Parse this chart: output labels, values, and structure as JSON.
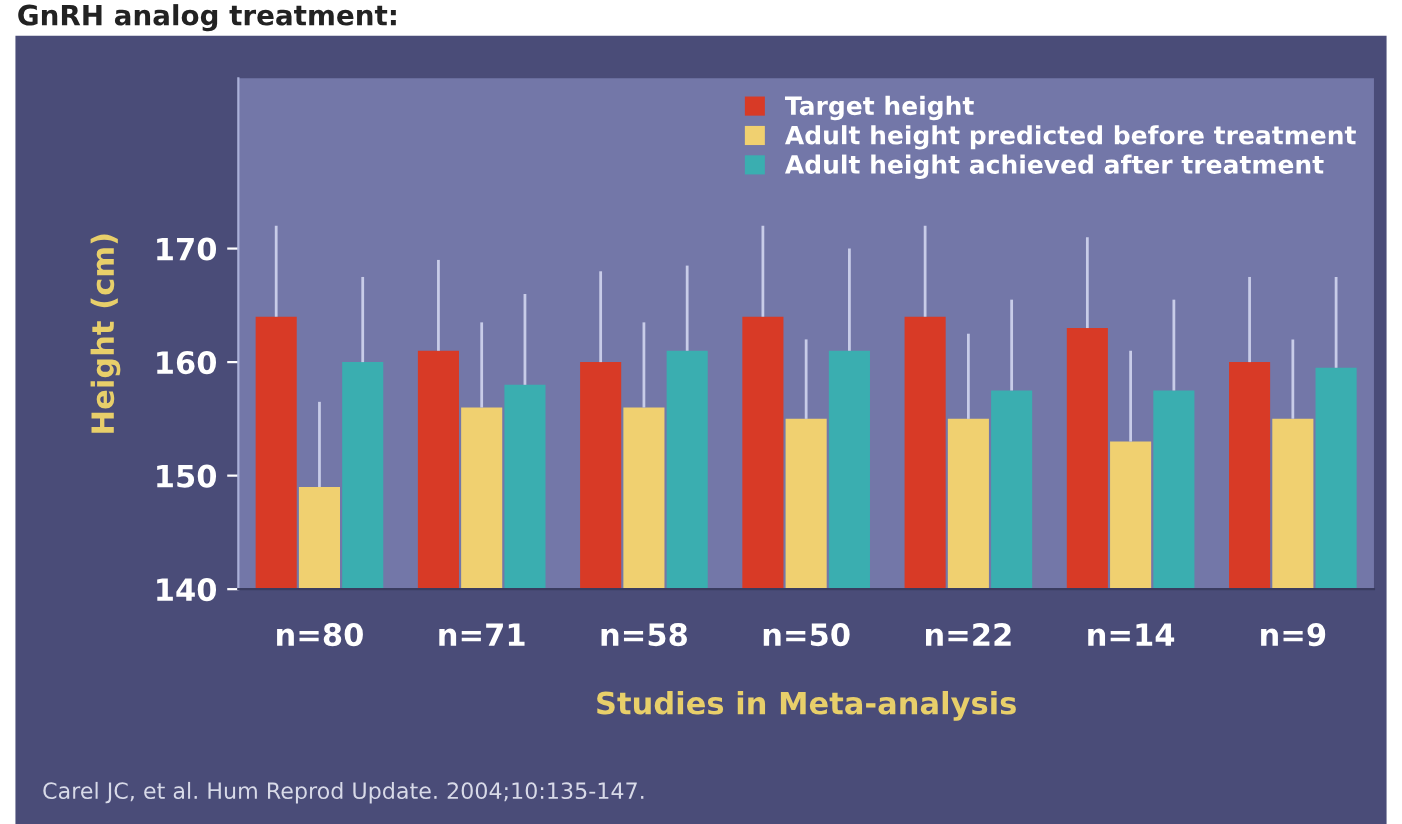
{
  "chart_data": {
    "type": "bar",
    "title": "GnRH analog treatment:",
    "xlabel": "Studies in Meta-analysis",
    "ylabel": "Height (cm)",
    "categories": [
      "n=80",
      "n=71",
      "n=58",
      "n=50",
      "n=22",
      "n=14",
      "n=9"
    ],
    "series": [
      {
        "name": "Target height",
        "color": "#d83a26",
        "values": [
          164,
          161,
          160,
          164,
          164,
          163,
          160
        ],
        "errors": [
          [
            164,
            172
          ],
          [
            161,
            169
          ],
          [
            160,
            168
          ],
          [
            164,
            172
          ],
          [
            164,
            172
          ],
          [
            163,
            171
          ],
          [
            160,
            167.5
          ]
        ]
      },
      {
        "name": "Adult height predicted before treatment",
        "color": "#f0d070",
        "values": [
          149,
          156,
          156,
          155,
          155,
          153,
          155
        ],
        "errors": [
          [
            149,
            156.5
          ],
          [
            156,
            163.5
          ],
          [
            156,
            163.5
          ],
          [
            155,
            162
          ],
          [
            155,
            162.5
          ],
          [
            153,
            161
          ],
          [
            155,
            162
          ]
        ]
      },
      {
        "name": "Adult height achieved after treatment",
        "color": "#3aaeb0",
        "values": [
          160,
          158,
          161,
          161,
          157.5,
          157.5,
          159.5
        ],
        "errors": [
          [
            160,
            167.5
          ],
          [
            158,
            166
          ],
          [
            161,
            168.5
          ],
          [
            161,
            170
          ],
          [
            157.5,
            165.5
          ],
          [
            157.5,
            165.5
          ],
          [
            159.5,
            167.5
          ]
        ]
      }
    ],
    "ylim": [
      140,
      185
    ],
    "yticks": [
      140,
      150,
      160,
      170
    ],
    "grid": false,
    "legend": "top right",
    "annotations": [
      "Carel JC, et al. Hum Reprod Update. 2004;10:135-147."
    ]
  }
}
